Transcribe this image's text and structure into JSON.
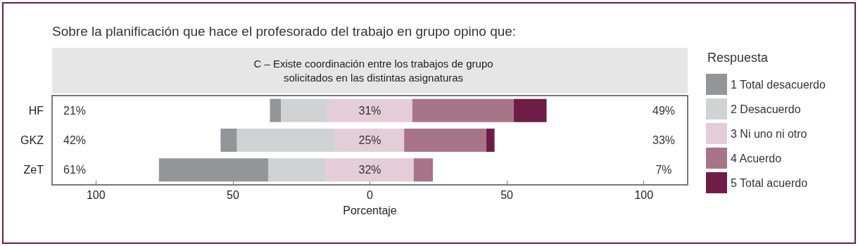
{
  "chart_data": {
    "type": "bar",
    "orientation": "horizontal",
    "title": "Sobre la planificación que hace el profesorado del trabajo en grupo opino que:",
    "subtitle": "C – Existe coordinación entre los trabajos de grupo\nsolicitados en las distintas asignaturas",
    "xlabel": "Porcentaje",
    "legend_title": "Respuesta",
    "legend": "right",
    "grid": false,
    "categories": [
      "HF",
      "GKZ",
      "ZeT"
    ],
    "series": [
      {
        "name": "1 Total desacuerdo",
        "color": "#939598",
        "values": [
          4,
          6,
          40
        ],
        "base": [
          -36.5,
          -54.5,
          -77
        ]
      },
      {
        "name": "2 Desacuerdo",
        "color": "#d1d2d4",
        "values": [
          17,
          36,
          21
        ],
        "base": [
          -32.5,
          -48.5,
          -37
        ]
      },
      {
        "name": "3 Ni uno ni otro",
        "color": "#e5cdd7",
        "values": [
          31,
          25,
          32
        ],
        "base": [
          -15.5,
          -12.5,
          -16
        ]
      },
      {
        "name": "4 Acuerdo",
        "color": "#a87588",
        "values": [
          37,
          30,
          7
        ],
        "base": [
          15.5,
          12.5,
          16
        ]
      },
      {
        "name": "5 Total acuerdo",
        "color": "#6f1d46",
        "values": [
          12,
          3,
          null
        ],
        "base": [
          52.5,
          42.5,
          null
        ]
      }
    ],
    "xlim": [
      -116,
      116
    ],
    "xticks": [
      {
        "value": -100,
        "label": "100"
      },
      {
        "value": -50,
        "label": "50"
      },
      0,
      50,
      100
    ],
    "annotations": [
      "21%",
      "31%",
      "49%",
      "42%",
      "25%",
      "33%",
      "61%",
      "32%",
      "7%"
    ]
  }
}
